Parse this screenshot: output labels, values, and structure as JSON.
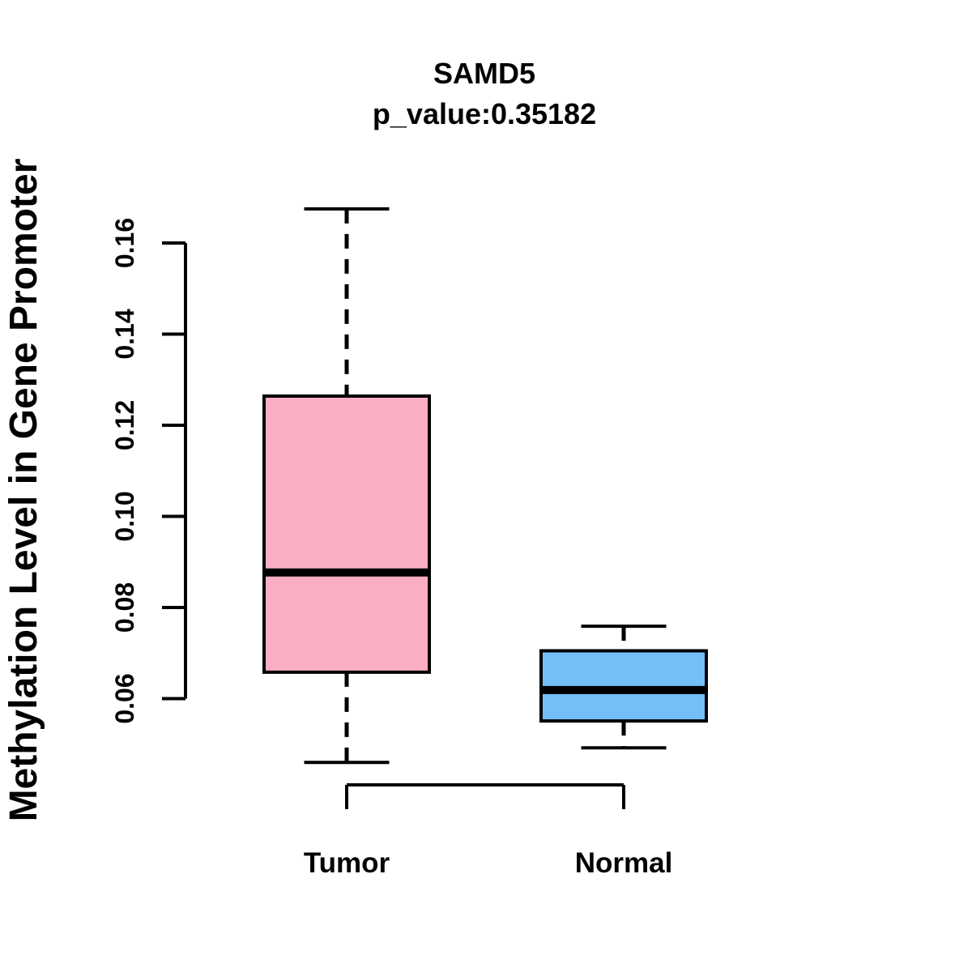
{
  "title": {
    "line1": "SAMD5",
    "line2": "p_value:0.35182"
  },
  "y_axis": {
    "label": "Methylation Level in Gene Promoter"
  },
  "colors": {
    "tumor_fill": "#FBAEC2",
    "normal_fill": "#74BFF7",
    "stroke": "#000000",
    "background": "#FFFFFF"
  },
  "chart_data": {
    "type": "boxplot",
    "title": "SAMD5",
    "subtitle": "p_value:0.35182",
    "ylabel": "Methylation Level in Gene Promoter",
    "xlabel": "",
    "categories": [
      "Tumor",
      "Normal"
    ],
    "ylim": [
      0.046,
      0.1675
    ],
    "yticks": [
      0.06,
      0.08,
      0.1,
      0.12,
      0.14,
      0.16
    ],
    "grid": false,
    "legend": "none",
    "series": [
      {
        "name": "Tumor",
        "lower_whisker": 0.046,
        "q1": 0.0658,
        "median": 0.0877,
        "q3": 0.1264,
        "upper_whisker": 0.1675,
        "fill": "#FBAEC2"
      },
      {
        "name": "Normal",
        "lower_whisker": 0.0492,
        "q1": 0.0551,
        "median": 0.0619,
        "q3": 0.0705,
        "upper_whisker": 0.0759,
        "fill": "#74BFF7"
      }
    ]
  }
}
